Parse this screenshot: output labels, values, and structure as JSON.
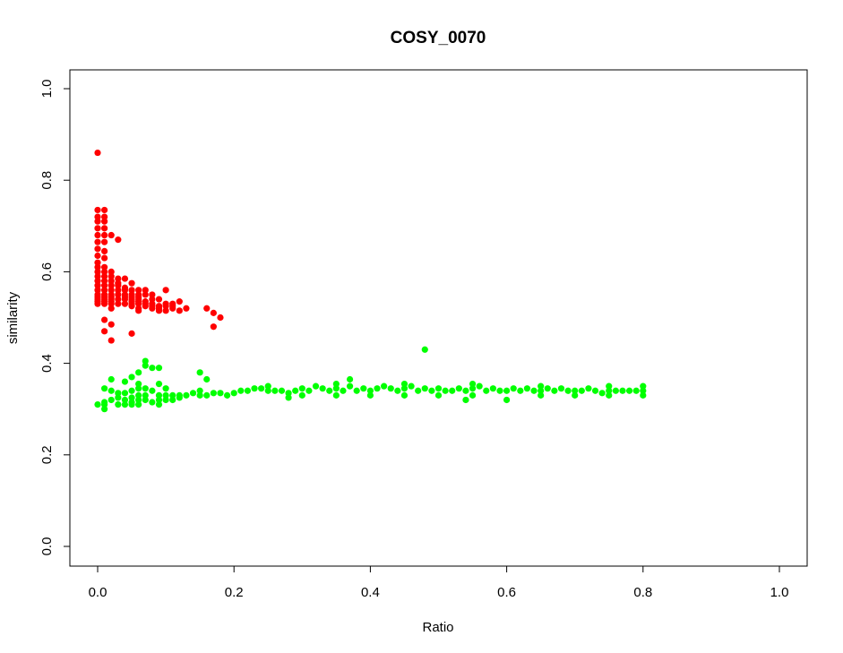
{
  "chart_data": {
    "type": "scatter",
    "title": "COSY_0070",
    "xlabel": "Ratio",
    "ylabel": "similarity",
    "xlim": [
      0.0,
      1.0
    ],
    "ylim": [
      0.0,
      1.0
    ],
    "xticks": [
      "0.0",
      "0.2",
      "0.4",
      "0.6",
      "0.8",
      "1.0"
    ],
    "yticks": [
      "0.0",
      "0.2",
      "0.4",
      "0.6",
      "0.8",
      "1.0"
    ],
    "grid": false,
    "legend": "none",
    "series": [
      {
        "color": "#ff0000",
        "points": [
          [
            0.0,
            0.86
          ],
          [
            0.0,
            0.735
          ],
          [
            0.01,
            0.735
          ],
          [
            0.0,
            0.72
          ],
          [
            0.01,
            0.72
          ],
          [
            0.0,
            0.71
          ],
          [
            0.01,
            0.71
          ],
          [
            0.0,
            0.695
          ],
          [
            0.01,
            0.695
          ],
          [
            0.0,
            0.68
          ],
          [
            0.01,
            0.68
          ],
          [
            0.02,
            0.68
          ],
          [
            0.03,
            0.67
          ],
          [
            0.0,
            0.665
          ],
          [
            0.01,
            0.665
          ],
          [
            0.0,
            0.65
          ],
          [
            0.01,
            0.645
          ],
          [
            0.0,
            0.635
          ],
          [
            0.01,
            0.63
          ],
          [
            0.0,
            0.62
          ],
          [
            0.0,
            0.61
          ],
          [
            0.01,
            0.61
          ],
          [
            0.0,
            0.6
          ],
          [
            0.01,
            0.6
          ],
          [
            0.02,
            0.6
          ],
          [
            0.0,
            0.59
          ],
          [
            0.01,
            0.59
          ],
          [
            0.02,
            0.59
          ],
          [
            0.03,
            0.585
          ],
          [
            0.04,
            0.585
          ],
          [
            0.0,
            0.58
          ],
          [
            0.01,
            0.58
          ],
          [
            0.02,
            0.58
          ],
          [
            0.03,
            0.575
          ],
          [
            0.05,
            0.575
          ],
          [
            0.0,
            0.57
          ],
          [
            0.01,
            0.57
          ],
          [
            0.02,
            0.57
          ],
          [
            0.03,
            0.57
          ],
          [
            0.04,
            0.565
          ],
          [
            0.0,
            0.56
          ],
          [
            0.01,
            0.56
          ],
          [
            0.02,
            0.56
          ],
          [
            0.03,
            0.56
          ],
          [
            0.04,
            0.56
          ],
          [
            0.05,
            0.56
          ],
          [
            0.06,
            0.56
          ],
          [
            0.07,
            0.56
          ],
          [
            0.1,
            0.56
          ],
          [
            0.0,
            0.55
          ],
          [
            0.01,
            0.55
          ],
          [
            0.02,
            0.55
          ],
          [
            0.03,
            0.55
          ],
          [
            0.04,
            0.55
          ],
          [
            0.05,
            0.55
          ],
          [
            0.06,
            0.55
          ],
          [
            0.07,
            0.55
          ],
          [
            0.08,
            0.55
          ],
          [
            0.0,
            0.545
          ],
          [
            0.01,
            0.545
          ],
          [
            0.02,
            0.545
          ],
          [
            0.04,
            0.545
          ],
          [
            0.05,
            0.545
          ],
          [
            0.06,
            0.545
          ],
          [
            0.0,
            0.54
          ],
          [
            0.01,
            0.54
          ],
          [
            0.02,
            0.54
          ],
          [
            0.03,
            0.54
          ],
          [
            0.04,
            0.54
          ],
          [
            0.05,
            0.54
          ],
          [
            0.06,
            0.54
          ],
          [
            0.08,
            0.54
          ],
          [
            0.09,
            0.54
          ],
          [
            0.0,
            0.535
          ],
          [
            0.01,
            0.535
          ],
          [
            0.02,
            0.535
          ],
          [
            0.05,
            0.535
          ],
          [
            0.06,
            0.535
          ],
          [
            0.07,
            0.535
          ],
          [
            0.0,
            0.53
          ],
          [
            0.01,
            0.53
          ],
          [
            0.02,
            0.53
          ],
          [
            0.03,
            0.53
          ],
          [
            0.04,
            0.53
          ],
          [
            0.05,
            0.53
          ],
          [
            0.06,
            0.53
          ],
          [
            0.07,
            0.53
          ],
          [
            0.08,
            0.53
          ],
          [
            0.1,
            0.53
          ],
          [
            0.11,
            0.53
          ],
          [
            0.12,
            0.535
          ],
          [
            0.05,
            0.525
          ],
          [
            0.07,
            0.525
          ],
          [
            0.08,
            0.525
          ],
          [
            0.09,
            0.525
          ],
          [
            0.1,
            0.525
          ],
          [
            0.11,
            0.525
          ],
          [
            0.02,
            0.52
          ],
          [
            0.06,
            0.52
          ],
          [
            0.08,
            0.52
          ],
          [
            0.09,
            0.52
          ],
          [
            0.11,
            0.52
          ],
          [
            0.13,
            0.52
          ],
          [
            0.16,
            0.52
          ],
          [
            0.06,
            0.515
          ],
          [
            0.09,
            0.515
          ],
          [
            0.1,
            0.515
          ],
          [
            0.12,
            0.515
          ],
          [
            0.17,
            0.51
          ],
          [
            0.18,
            0.5
          ],
          [
            0.01,
            0.495
          ],
          [
            0.02,
            0.485
          ],
          [
            0.17,
            0.48
          ],
          [
            0.01,
            0.47
          ],
          [
            0.05,
            0.465
          ],
          [
            0.02,
            0.45
          ]
        ]
      },
      {
        "color": "#00ff00",
        "points": [
          [
            0.48,
            0.43
          ],
          [
            0.07,
            0.405
          ],
          [
            0.07,
            0.395
          ],
          [
            0.08,
            0.39
          ],
          [
            0.09,
            0.39
          ],
          [
            0.06,
            0.38
          ],
          [
            0.15,
            0.38
          ],
          [
            0.05,
            0.37
          ],
          [
            0.02,
            0.365
          ],
          [
            0.16,
            0.365
          ],
          [
            0.37,
            0.365
          ],
          [
            0.04,
            0.36
          ],
          [
            0.06,
            0.355
          ],
          [
            0.09,
            0.355
          ],
          [
            0.01,
            0.345
          ],
          [
            0.02,
            0.34
          ],
          [
            0.03,
            0.335
          ],
          [
            0.04,
            0.335
          ],
          [
            0.05,
            0.34
          ],
          [
            0.06,
            0.345
          ],
          [
            0.07,
            0.345
          ],
          [
            0.08,
            0.34
          ],
          [
            0.1,
            0.345
          ],
          [
            0.03,
            0.325
          ],
          [
            0.05,
            0.325
          ],
          [
            0.06,
            0.33
          ],
          [
            0.07,
            0.33
          ],
          [
            0.09,
            0.33
          ],
          [
            0.1,
            0.33
          ],
          [
            0.11,
            0.33
          ],
          [
            0.12,
            0.33
          ],
          [
            0.13,
            0.33
          ],
          [
            0.01,
            0.315
          ],
          [
            0.02,
            0.32
          ],
          [
            0.04,
            0.32
          ],
          [
            0.05,
            0.315
          ],
          [
            0.06,
            0.32
          ],
          [
            0.07,
            0.32
          ],
          [
            0.08,
            0.315
          ],
          [
            0.09,
            0.32
          ],
          [
            0.1,
            0.32
          ],
          [
            0.11,
            0.32
          ],
          [
            0.12,
            0.325
          ],
          [
            0.0,
            0.31
          ],
          [
            0.01,
            0.31
          ],
          [
            0.03,
            0.31
          ],
          [
            0.04,
            0.31
          ],
          [
            0.05,
            0.31
          ],
          [
            0.06,
            0.31
          ],
          [
            0.09,
            0.31
          ],
          [
            0.01,
            0.3
          ],
          [
            0.14,
            0.335
          ],
          [
            0.15,
            0.34
          ],
          [
            0.15,
            0.33
          ],
          [
            0.16,
            0.33
          ],
          [
            0.17,
            0.335
          ],
          [
            0.18,
            0.335
          ],
          [
            0.19,
            0.33
          ],
          [
            0.2,
            0.335
          ],
          [
            0.21,
            0.34
          ],
          [
            0.22,
            0.34
          ],
          [
            0.23,
            0.345
          ],
          [
            0.24,
            0.345
          ],
          [
            0.25,
            0.34
          ],
          [
            0.26,
            0.34
          ],
          [
            0.27,
            0.34
          ],
          [
            0.28,
            0.335
          ],
          [
            0.28,
            0.325
          ],
          [
            0.29,
            0.34
          ],
          [
            0.3,
            0.345
          ],
          [
            0.31,
            0.34
          ],
          [
            0.32,
            0.35
          ],
          [
            0.33,
            0.345
          ],
          [
            0.34,
            0.34
          ],
          [
            0.35,
            0.345
          ],
          [
            0.36,
            0.34
          ],
          [
            0.37,
            0.35
          ],
          [
            0.38,
            0.34
          ],
          [
            0.39,
            0.345
          ],
          [
            0.4,
            0.34
          ],
          [
            0.41,
            0.345
          ],
          [
            0.42,
            0.35
          ],
          [
            0.43,
            0.345
          ],
          [
            0.44,
            0.34
          ],
          [
            0.45,
            0.345
          ],
          [
            0.46,
            0.35
          ],
          [
            0.47,
            0.34
          ],
          [
            0.48,
            0.345
          ],
          [
            0.49,
            0.34
          ],
          [
            0.5,
            0.345
          ],
          [
            0.51,
            0.34
          ],
          [
            0.52,
            0.34
          ],
          [
            0.53,
            0.345
          ],
          [
            0.54,
            0.34
          ],
          [
            0.54,
            0.32
          ],
          [
            0.55,
            0.345
          ],
          [
            0.56,
            0.35
          ],
          [
            0.57,
            0.34
          ],
          [
            0.58,
            0.345
          ],
          [
            0.59,
            0.34
          ],
          [
            0.6,
            0.34
          ],
          [
            0.6,
            0.32
          ],
          [
            0.61,
            0.345
          ],
          [
            0.62,
            0.34
          ],
          [
            0.63,
            0.345
          ],
          [
            0.64,
            0.34
          ],
          [
            0.65,
            0.34
          ],
          [
            0.66,
            0.345
          ],
          [
            0.67,
            0.34
          ],
          [
            0.68,
            0.345
          ],
          [
            0.69,
            0.34
          ],
          [
            0.7,
            0.34
          ],
          [
            0.71,
            0.34
          ],
          [
            0.72,
            0.345
          ],
          [
            0.73,
            0.34
          ],
          [
            0.74,
            0.335
          ],
          [
            0.75,
            0.34
          ],
          [
            0.76,
            0.34
          ],
          [
            0.77,
            0.34
          ],
          [
            0.78,
            0.34
          ],
          [
            0.79,
            0.34
          ],
          [
            0.8,
            0.34
          ],
          [
            0.3,
            0.33
          ],
          [
            0.35,
            0.33
          ],
          [
            0.4,
            0.33
          ],
          [
            0.45,
            0.33
          ],
          [
            0.5,
            0.33
          ],
          [
            0.55,
            0.33
          ],
          [
            0.65,
            0.33
          ],
          [
            0.7,
            0.33
          ],
          [
            0.75,
            0.33
          ],
          [
            0.8,
            0.33
          ],
          [
            0.25,
            0.35
          ],
          [
            0.35,
            0.355
          ],
          [
            0.45,
            0.355
          ],
          [
            0.55,
            0.355
          ],
          [
            0.65,
            0.35
          ],
          [
            0.75,
            0.35
          ],
          [
            0.8,
            0.35
          ]
        ]
      }
    ]
  }
}
